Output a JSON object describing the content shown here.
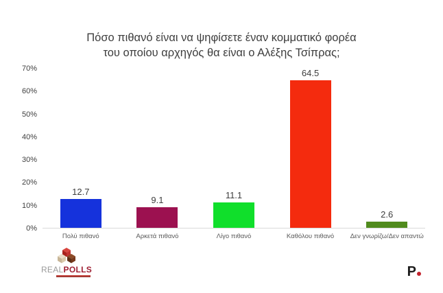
{
  "title": {
    "line1": "Πόσο πιθανό είναι να ψηφίσετε έναν κομματικό φορέα",
    "line2": "του οποίου αρχηγός θα είναι ο Αλέξης Τσίπρας;"
  },
  "chart_data": {
    "type": "bar",
    "title": "Πόσο πιθανό είναι να ψηφίσετε έναν κομματικό φορέα του οποίου αρχηγός θα είναι ο Αλέξης Τσίπρας;",
    "categories": [
      "Πολύ πιθανό",
      "Αρκετά πιθανό",
      "Λίγο πιθανό",
      "Καθόλου πιθανό",
      "Δεν γνωρίζω/Δεν απαντώ"
    ],
    "values": [
      12.7,
      9.1,
      11.1,
      64.5,
      2.6
    ],
    "value_labels": [
      "12.7",
      "9.1",
      "11.1",
      "64.5",
      "2.6"
    ],
    "bar_colors": [
      "#1532dc",
      "#9c1150",
      "#10df2b",
      "#f42b0e",
      "#508b1d"
    ],
    "xlabel": "",
    "ylabel": "",
    "ylim": [
      0,
      70
    ],
    "ytick_labels": [
      "70%",
      "60%",
      "50%",
      "40%",
      "30%",
      "20%",
      "10%",
      "0%"
    ],
    "grid": false,
    "legend": false
  },
  "footer": {
    "realpolls": {
      "brand_gray": "REAL",
      "brand_red": "POLLS"
    },
    "publisher": {
      "letter": "P"
    }
  }
}
